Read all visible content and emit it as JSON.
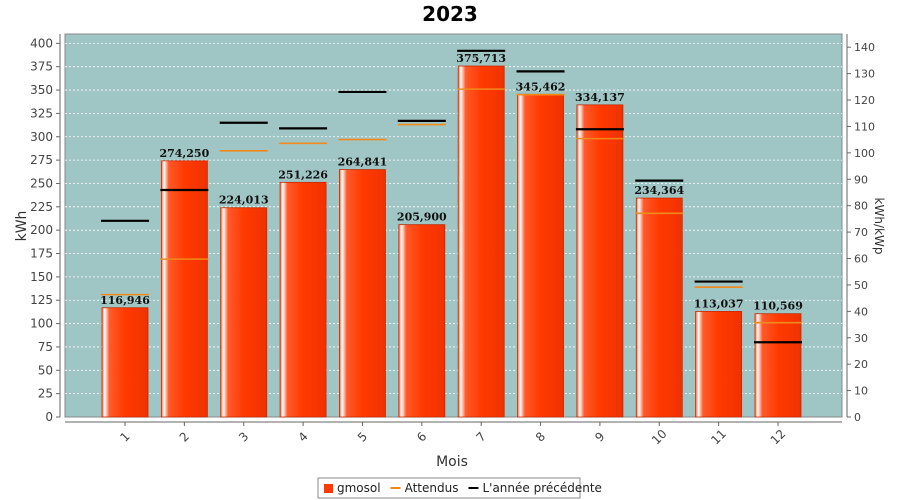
{
  "chart_data": {
    "type": "bar",
    "title": "2023",
    "xlabel": "Mois",
    "ylabel": "kWh",
    "y2label": "kWh/kWp",
    "categories": [
      "1",
      "2",
      "3",
      "4",
      "5",
      "6",
      "7",
      "8",
      "9",
      "10",
      "11",
      "12"
    ],
    "ylim": [
      0,
      410
    ],
    "y2lim": [
      0,
      145
    ],
    "yticks": [
      0,
      25,
      50,
      75,
      100,
      125,
      150,
      175,
      200,
      225,
      250,
      275,
      300,
      325,
      350,
      375,
      400
    ],
    "y2ticks": [
      0,
      10,
      20,
      30,
      40,
      50,
      60,
      70,
      80,
      90,
      100,
      110,
      120,
      130,
      140
    ],
    "grid": true,
    "legend_position": "bottom",
    "series": [
      {
        "name": "gmosol",
        "kind": "bar",
        "color": "#ff3a00",
        "values": [
          116.946,
          274.25,
          224.013,
          251.226,
          264.841,
          205.9,
          375.713,
          345.462,
          334.137,
          234.364,
          113.037,
          110.569
        ],
        "labels": [
          "116,946",
          "274,250",
          "224,013",
          "251,226",
          "264,841",
          "205,900",
          "375,713",
          "345,462",
          "334,137",
          "234,364",
          "113,037",
          "110,569"
        ]
      },
      {
        "name": "Attendus",
        "kind": "marker",
        "color": "#f08a1c",
        "values": [
          131,
          169,
          285,
          293,
          297,
          313,
          351,
          345,
          298,
          218,
          139,
          101
        ]
      },
      {
        "name": "L'année précédente",
        "kind": "marker",
        "color": "#000000",
        "values": [
          210,
          243,
          315,
          309,
          348,
          317,
          392,
          370,
          308,
          253,
          145,
          80
        ]
      }
    ],
    "plot_background": "#9fc5c4"
  }
}
